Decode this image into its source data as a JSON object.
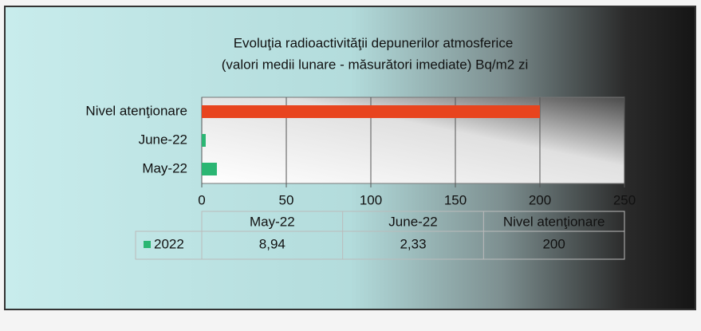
{
  "chart_data": {
    "type": "hbar",
    "title": "Evoluţia radioactivităţii depunerilor atmosferice",
    "subtitle": "(valori medii lunare - măsurători imediate) Bq/m2 zi",
    "categories": [
      "May-22",
      "June-22",
      "Nivel atenţionare"
    ],
    "series": [
      {
        "name": "2022",
        "color": "#2bb673",
        "values": [
          8.94,
          2.33,
          200
        ],
        "value_labels": [
          "8,94",
          "2,33",
          "200"
        ]
      }
    ],
    "colors": [
      "#2bb673",
      "#2bb673",
      "#e8441e"
    ],
    "xlim": [
      0,
      250
    ],
    "xticks": [
      0,
      50,
      100,
      150,
      200,
      250
    ],
    "grid": true
  }
}
